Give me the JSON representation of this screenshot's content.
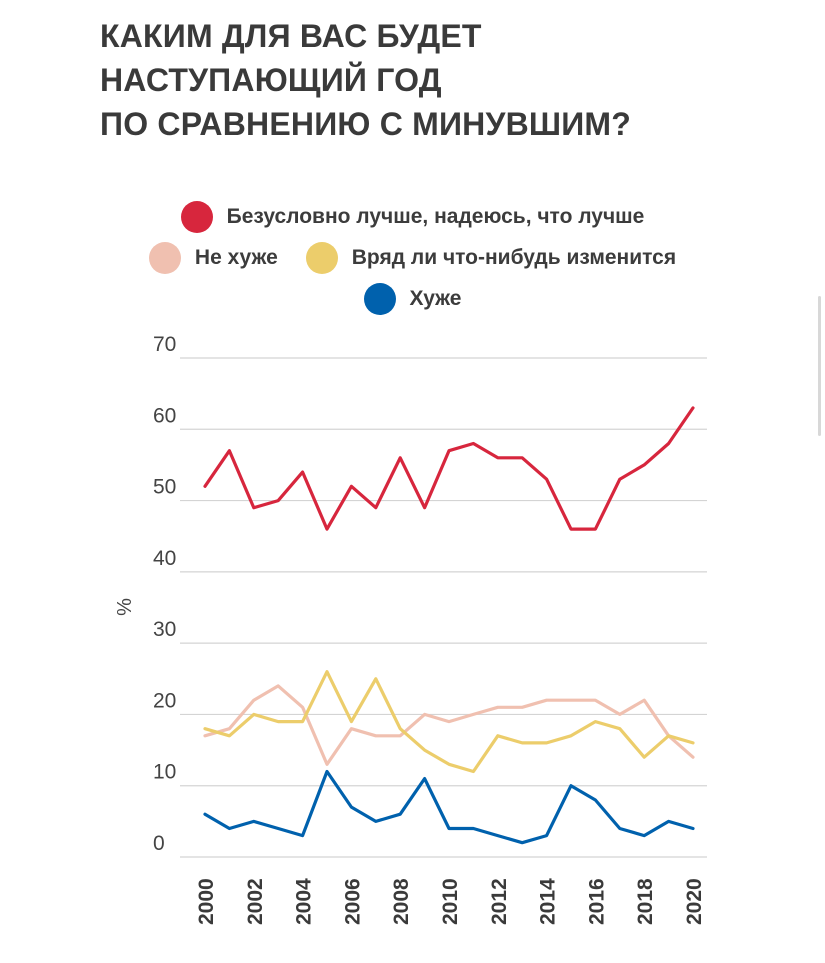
{
  "title_lines": [
    "КАКИМ ДЛЯ ВАС БУДЕТ",
    "НАСТУПАЮЩИЙ ГОД",
    "ПО СРАВНЕНИЮ С МИНУВШИМ?"
  ],
  "chart_data": {
    "type": "line",
    "title": "КАКИМ ДЛЯ ВАС БУДЕТ НАСТУПАЮЩИЙ ГОД ПО СРАВНЕНИЮ С МИНУВШИМ?",
    "xlabel": "",
    "ylabel": "%",
    "ylim": [
      0,
      70
    ],
    "yticks": [
      0,
      10,
      20,
      30,
      40,
      50,
      60,
      70
    ],
    "xticks": [
      2000,
      2002,
      2004,
      2006,
      2008,
      2010,
      2012,
      2014,
      2016,
      2018,
      2020
    ],
    "x": [
      2000,
      2001,
      2002,
      2003,
      2004,
      2005,
      2006,
      2007,
      2008,
      2009,
      2010,
      2011,
      2012,
      2013,
      2014,
      2015,
      2016,
      2017,
      2018,
      2019,
      2020
    ],
    "grid": true,
    "legend_position": "top",
    "series": [
      {
        "name": "Безусловно лучше, надеюсь, что лучше",
        "color": "#d7263d",
        "values": [
          52,
          57,
          49,
          50,
          54,
          46,
          52,
          49,
          56,
          49,
          57,
          58,
          56,
          56,
          53,
          46,
          46,
          53,
          55,
          58,
          63
        ]
      },
      {
        "name": "Не хуже",
        "color": "#f0c0b0",
        "values": [
          17,
          18,
          22,
          24,
          21,
          13,
          18,
          17,
          17,
          20,
          19,
          20,
          21,
          21,
          22,
          22,
          22,
          20,
          22,
          17,
          14
        ]
      },
      {
        "name": "Вряд ли что-нибудь изменится",
        "color": "#eccd6b",
        "values": [
          18,
          17,
          20,
          19,
          19,
          26,
          19,
          25,
          18,
          15,
          13,
          12,
          17,
          16,
          16,
          17,
          19,
          18,
          14,
          17,
          16
        ]
      },
      {
        "name": "Хуже",
        "color": "#0061ad",
        "values": [
          6,
          4,
          5,
          4,
          3,
          12,
          7,
          5,
          6,
          11,
          4,
          4,
          3,
          2,
          3,
          10,
          8,
          4,
          3,
          5,
          4
        ]
      }
    ]
  }
}
